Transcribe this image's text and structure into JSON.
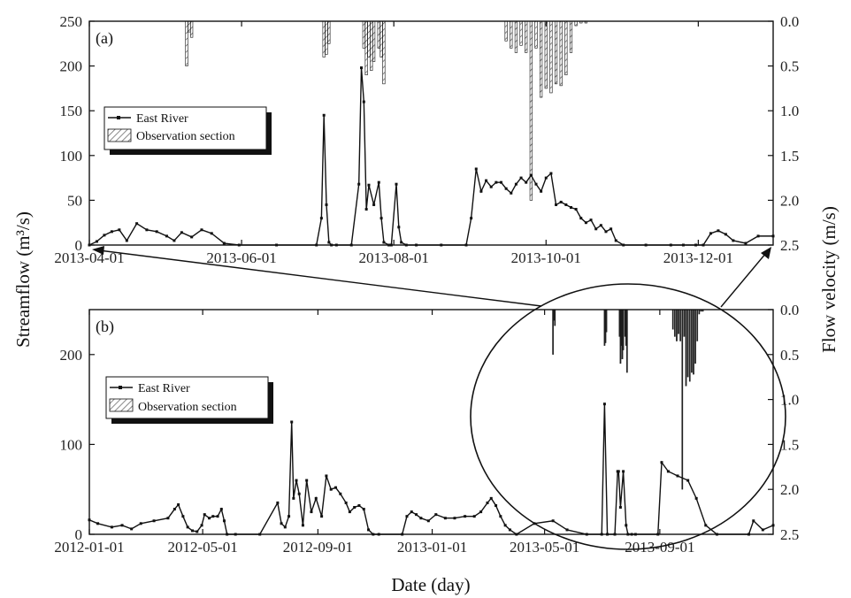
{
  "figure": {
    "y_left_label": "Streamflow (m³/s)",
    "y_right_label": "Flow velocity (m/s)",
    "x_label": "Date (day)"
  },
  "chart_data": [
    {
      "type": "line",
      "panel": "(a)",
      "x_range": [
        "2013-04-01",
        "2013-12-31"
      ],
      "x_ticks": [
        "2013-04-01",
        "2013-06-01",
        "2013-08-01",
        "2013-10-01",
        "2013-12-01"
      ],
      "y_left": {
        "range": [
          0,
          250
        ],
        "ticks": [
          "0",
          "50",
          "100",
          "150",
          "200",
          "250"
        ]
      },
      "y_right": {
        "range": [
          0.0,
          2.5
        ],
        "inverted": true,
        "ticks": [
          "0.0",
          "0.5",
          "1.0",
          "1.5",
          "2.0",
          "2.5"
        ]
      },
      "legend": [
        "East River",
        "Observation section"
      ],
      "legend_position": "upper-left",
      "series": [
        {
          "name": "East River",
          "axis": "left",
          "x": [
            "2013-04-01",
            "2013-04-04",
            "2013-04-07",
            "2013-04-10",
            "2013-04-13",
            "2013-04-16",
            "2013-04-20",
            "2013-04-24",
            "2013-04-28",
            "2013-05-02",
            "2013-05-05",
            "2013-05-08",
            "2013-05-12",
            "2013-05-16",
            "2013-05-20",
            "2013-05-25",
            "2013-05-31",
            "2013-06-15",
            "2013-07-01",
            "2013-07-03",
            "2013-07-04",
            "2013-07-05",
            "2013-07-06",
            "2013-07-07",
            "2013-07-09",
            "2013-07-15",
            "2013-07-18",
            "2013-07-19",
            "2013-07-20",
            "2013-07-21",
            "2013-07-22",
            "2013-07-24",
            "2013-07-26",
            "2013-07-27",
            "2013-07-28",
            "2013-07-30",
            "2013-07-31",
            "2013-08-02",
            "2013-08-03",
            "2013-08-04",
            "2013-08-06",
            "2013-08-10",
            "2013-08-20",
            "2013-08-30",
            "2013-09-01",
            "2013-09-03",
            "2013-09-05",
            "2013-09-07",
            "2013-09-09",
            "2013-09-11",
            "2013-09-13",
            "2013-09-15",
            "2013-09-17",
            "2013-09-19",
            "2013-09-21",
            "2013-09-23",
            "2013-09-25",
            "2013-09-27",
            "2013-09-29",
            "2013-10-01",
            "2013-10-03",
            "2013-10-05",
            "2013-10-07",
            "2013-10-09",
            "2013-10-11",
            "2013-10-13",
            "2013-10-15",
            "2013-10-17",
            "2013-10-19",
            "2013-10-21",
            "2013-10-23",
            "2013-10-25",
            "2013-10-27",
            "2013-10-29",
            "2013-11-01",
            "2013-11-10",
            "2013-11-20",
            "2013-11-25",
            "2013-11-30",
            "2013-12-03",
            "2013-12-06",
            "2013-12-09",
            "2013-12-12",
            "2013-12-15",
            "2013-12-20",
            "2013-12-25",
            "2013-12-31"
          ],
          "values": [
            0,
            4,
            11,
            15,
            17,
            5,
            24,
            17,
            15,
            10,
            5,
            14,
            9,
            17,
            13,
            2,
            0,
            0,
            0,
            30,
            145,
            45,
            3,
            0,
            0,
            0,
            68,
            198,
            160,
            40,
            67,
            45,
            70,
            30,
            3,
            0,
            0,
            68,
            20,
            3,
            0,
            0,
            0,
            0,
            30,
            85,
            60,
            72,
            65,
            70,
            70,
            63,
            58,
            68,
            75,
            70,
            78,
            68,
            60,
            75,
            80,
            45,
            48,
            45,
            42,
            40,
            30,
            25,
            28,
            18,
            22,
            15,
            18,
            5,
            0,
            0,
            0,
            0,
            0,
            0,
            13,
            16,
            12,
            5,
            2,
            10,
            10
          ]
        },
        {
          "name": "Observation section",
          "axis": "right",
          "type": "bar",
          "x": [
            "2013-05-10",
            "2013-05-11",
            "2013-05-12",
            "2013-07-04",
            "2013-07-05",
            "2013-07-06",
            "2013-07-20",
            "2013-07-21",
            "2013-07-22",
            "2013-07-23",
            "2013-07-24",
            "2013-07-26",
            "2013-07-27",
            "2013-07-28",
            "2013-09-15",
            "2013-09-17",
            "2013-09-19",
            "2013-09-21",
            "2013-09-23",
            "2013-09-25",
            "2013-09-27",
            "2013-09-29",
            "2013-10-01",
            "2013-10-03",
            "2013-10-05",
            "2013-10-07",
            "2013-10-09",
            "2013-10-11",
            "2013-10-13",
            "2013-10-15",
            "2013-10-17"
          ],
          "values": [
            0.5,
            0.12,
            0.18,
            0.4,
            0.37,
            0.25,
            0.3,
            0.6,
            0.4,
            0.55,
            0.45,
            0.3,
            0.4,
            0.7,
            0.22,
            0.3,
            0.35,
            0.27,
            0.35,
            2.0,
            0.3,
            0.85,
            0.75,
            0.8,
            0.7,
            0.72,
            0.6,
            0.35,
            0.05,
            0.02,
            0.02
          ]
        }
      ]
    },
    {
      "type": "line",
      "panel": "(b)",
      "x_range": [
        "2012-01-01",
        "2013-12-31"
      ],
      "x_ticks": [
        "2012-01-01",
        "2012-05-01",
        "2012-09-01",
        "2013-01-01",
        "2013-05-01",
        "2013-09-01"
      ],
      "y_left": {
        "range": [
          0,
          250
        ],
        "ticks": [
          "0",
          "100",
          "200"
        ]
      },
      "y_right": {
        "range": [
          0.0,
          2.5
        ],
        "inverted": true,
        "ticks": [
          "0.0",
          "0.5",
          "1.0",
          "1.5",
          "2.0",
          "2.5"
        ]
      },
      "legend": [
        "East River",
        "Observation section"
      ],
      "legend_position": "upper-left",
      "series": [
        {
          "name": "East River",
          "axis": "left",
          "x": [
            "2012-01-01",
            "2012-01-10",
            "2012-01-25",
            "2012-02-05",
            "2012-02-15",
            "2012-02-25",
            "2012-03-10",
            "2012-03-25",
            "2012-04-01",
            "2012-04-05",
            "2012-04-10",
            "2012-04-15",
            "2012-04-20",
            "2012-04-25",
            "2012-04-30",
            "2012-05-03",
            "2012-05-08",
            "2012-05-12",
            "2012-05-17",
            "2012-05-21",
            "2012-05-24",
            "2012-05-27",
            "2012-06-05",
            "2012-07-01",
            "2012-07-20",
            "2012-07-24",
            "2012-07-28",
            "2012-08-01",
            "2012-08-04",
            "2012-08-06",
            "2012-08-09",
            "2012-08-12",
            "2012-08-16",
            "2012-08-20",
            "2012-08-25",
            "2012-08-30",
            "2012-09-05",
            "2012-09-10",
            "2012-09-15",
            "2012-09-20",
            "2012-09-25",
            "2012-10-01",
            "2012-10-05",
            "2012-10-10",
            "2012-10-15",
            "2012-10-20",
            "2012-10-25",
            "2012-10-30",
            "2012-11-05",
            "2012-11-30",
            "2012-12-05",
            "2012-12-10",
            "2012-12-15",
            "2012-12-20",
            "2012-12-28",
            "2013-01-05",
            "2013-01-15",
            "2013-01-25",
            "2013-02-05",
            "2013-02-15",
            "2013-02-22",
            "2013-03-01",
            "2013-03-05",
            "2013-03-10",
            "2013-03-15",
            "2013-03-20",
            "2013-03-25",
            "2013-04-01",
            "2013-04-20",
            "2013-05-10",
            "2013-05-25",
            "2013-06-15",
            "2013-07-01",
            "2013-07-04",
            "2013-07-07",
            "2013-07-15",
            "2013-07-18",
            "2013-07-19",
            "2013-07-21",
            "2013-07-24",
            "2013-07-27",
            "2013-07-29",
            "2013-08-02",
            "2013-08-06",
            "2013-08-30",
            "2013-09-03",
            "2013-09-10",
            "2013-09-20",
            "2013-10-01",
            "2013-10-10",
            "2013-10-20",
            "2013-11-01",
            "2013-12-05",
            "2013-12-10",
            "2013-12-20",
            "2013-12-31"
          ],
          "values": [
            16,
            12,
            8,
            10,
            6,
            12,
            15,
            18,
            28,
            33,
            20,
            8,
            4,
            3,
            10,
            22,
            18,
            20,
            20,
            28,
            15,
            0,
            0,
            0,
            35,
            12,
            8,
            20,
            125,
            40,
            60,
            45,
            10,
            60,
            25,
            40,
            20,
            65,
            50,
            52,
            45,
            35,
            25,
            30,
            32,
            28,
            5,
            0,
            0,
            0,
            20,
            25,
            22,
            18,
            15,
            22,
            18,
            18,
            20,
            20,
            25,
            35,
            40,
            32,
            20,
            10,
            5,
            0,
            12,
            15,
            5,
            0,
            0,
            145,
            0,
            0,
            70,
            70,
            30,
            70,
            10,
            0,
            0,
            0,
            0,
            80,
            70,
            65,
            60,
            40,
            10,
            0,
            0,
            15,
            5,
            10
          ]
        },
        {
          "name": "Observation section",
          "axis": "right",
          "type": "bar",
          "x": [
            "2013-05-10",
            "2013-05-11",
            "2013-05-12",
            "2013-07-04",
            "2013-07-05",
            "2013-07-06",
            "2013-07-20",
            "2013-07-21",
            "2013-07-22",
            "2013-07-23",
            "2013-07-24",
            "2013-07-26",
            "2013-07-27",
            "2013-07-28",
            "2013-09-15",
            "2013-09-17",
            "2013-09-19",
            "2013-09-21",
            "2013-09-23",
            "2013-09-25",
            "2013-09-27",
            "2013-09-29",
            "2013-10-01",
            "2013-10-03",
            "2013-10-05",
            "2013-10-07",
            "2013-10-09",
            "2013-10-11",
            "2013-10-13",
            "2013-10-15",
            "2013-10-17"
          ],
          "values": [
            0.5,
            0.12,
            0.18,
            0.4,
            0.37,
            0.25,
            0.3,
            0.6,
            0.4,
            0.55,
            0.45,
            0.3,
            0.4,
            0.7,
            0.22,
            0.3,
            0.35,
            0.27,
            0.35,
            2.0,
            0.3,
            0.85,
            0.75,
            0.8,
            0.7,
            0.72,
            0.6,
            0.35,
            0.05,
            0.02,
            0.02
          ]
        }
      ]
    }
  ]
}
